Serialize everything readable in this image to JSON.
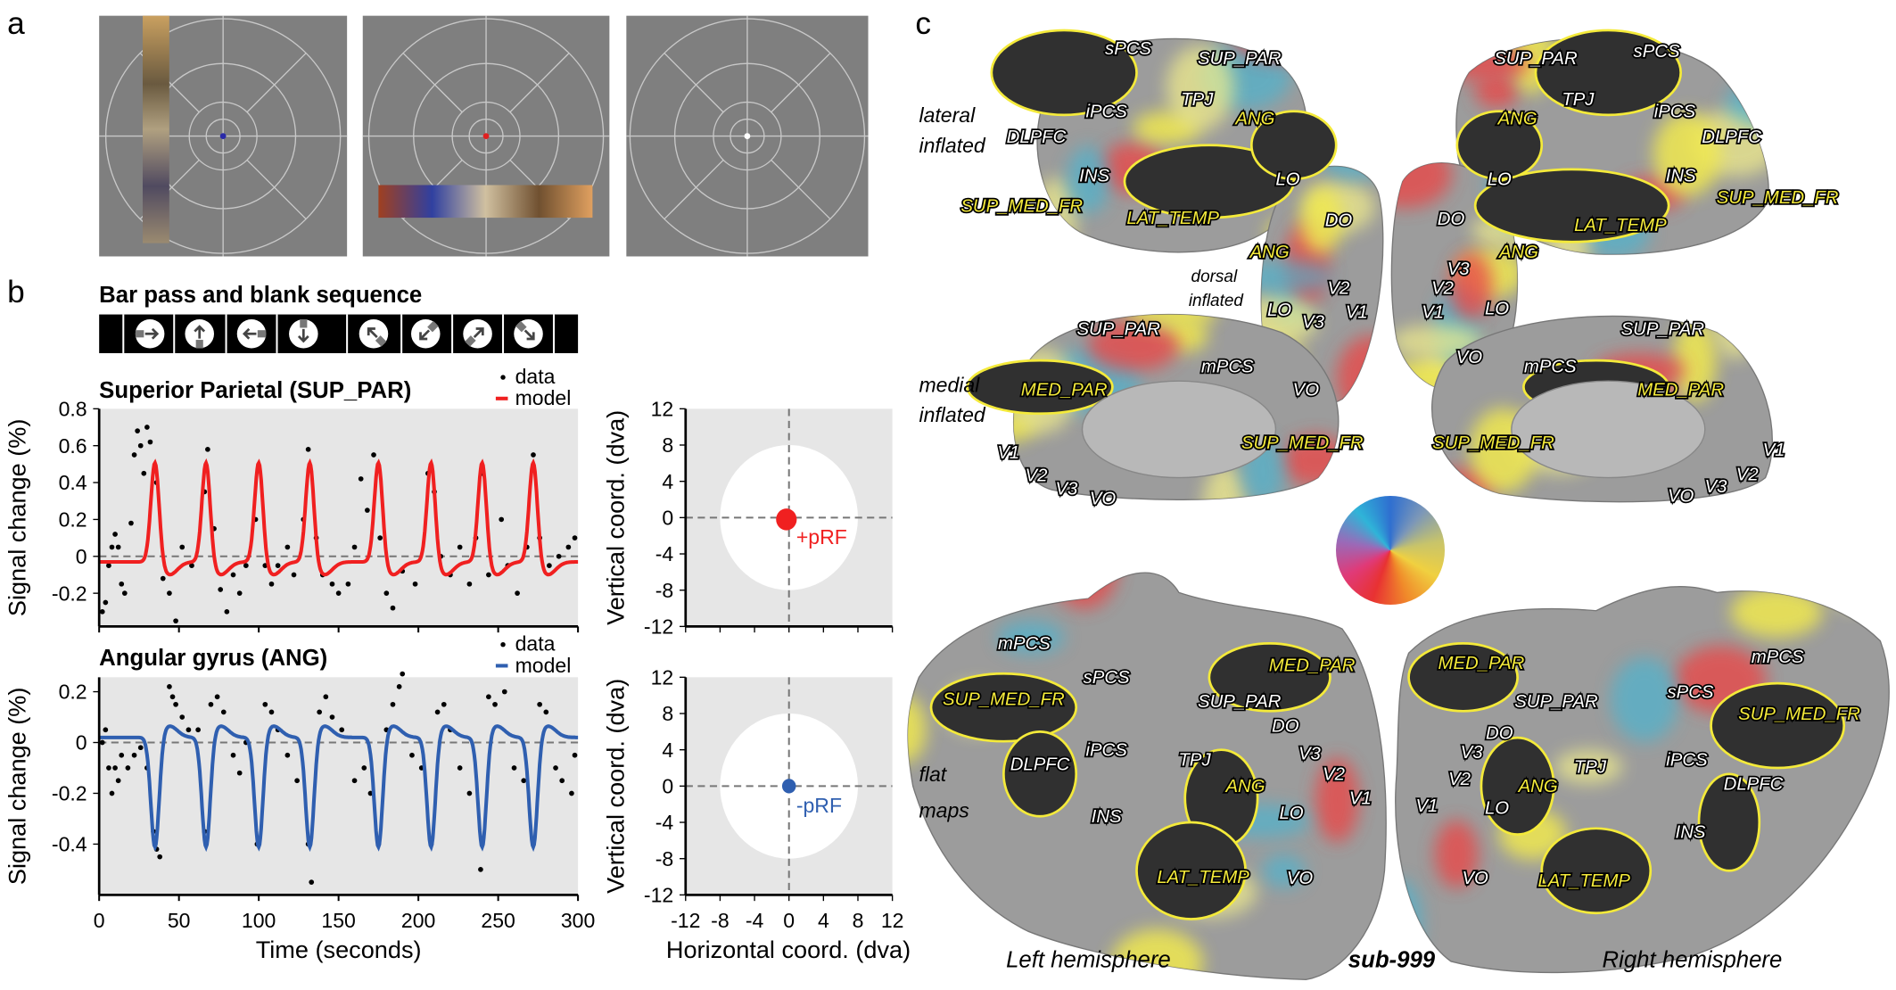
{
  "panel_a": {
    "letter": "a",
    "stimuli": [
      {
        "bar": "vertical-left",
        "fixation_color": "#2a2aa8"
      },
      {
        "bar": "horizontal-bottom",
        "fixation_color": "#e02020"
      },
      {
        "bar": "none",
        "fixation_color": "#ffffff"
      }
    ]
  },
  "panel_b": {
    "letter": "b",
    "sequence_title": "Bar pass and blank sequence",
    "legend": {
      "data": "data",
      "model": "model"
    }
  },
  "panel_c": {
    "letter": "c",
    "side_labels": [
      "lateral",
      "inflated",
      "medial",
      "inflated",
      "flat",
      "maps",
      "dorsal",
      "inflated"
    ],
    "bottom_labels": {
      "left": "Left hemisphere",
      "subject": "sub-999",
      "right": "Right hemisphere"
    },
    "roi_labels": [
      "sPCS",
      "SUP_PAR",
      "iPCS",
      "TPJ",
      "ANG",
      "DLPFC",
      "INS",
      "LO",
      "SUP_MED_FR",
      "LAT_TEMP",
      "SUP_PAR",
      "sPCS",
      "ANG",
      "TPJ",
      "iPCS",
      "DLPFC",
      "LO",
      "INS",
      "LAT_TEMP",
      "SUP_MED_FR",
      "DO",
      "ANG",
      "V3",
      "V2",
      "V1",
      "LO",
      "VO",
      "DO",
      "V3",
      "ANG",
      "V2",
      "V1",
      "LO",
      "VO",
      "SUP_PAR",
      "mPCS",
      "MED_PAR",
      "SUP_MED_FR",
      "V1",
      "V2",
      "V3",
      "VO",
      "SUP_PAR",
      "mPCS",
      "MED_PAR",
      "SUP_MED_FR",
      "V1",
      "V2",
      "V3",
      "VO",
      "mPCS",
      "sPCS",
      "MED_PAR",
      "SUP_MED_FR",
      "SUP_PAR",
      "DO",
      "iPCS",
      "DLPFC",
      "TPJ",
      "V3",
      "V2",
      "ANG",
      "V1",
      "LO",
      "INS",
      "LAT_TEMP",
      "VO",
      "MED_PAR",
      "mPCS",
      "SUP_PAR",
      "sPCS",
      "SUP_MED_FR",
      "DO",
      "V3",
      "iPCS",
      "DLPFC",
      "V2",
      "TPJ",
      "ANG",
      "V1",
      "LO",
      "INS",
      "LAT_TEMP",
      "VO"
    ]
  },
  "colors": {
    "red": "#f02020",
    "blue": "#2f5fb0",
    "plot_bg": "#e6e6e6",
    "stim_bg": "#7f7f7f"
  },
  "chart_data": [
    {
      "type": "scatter",
      "title": "Superior Parietal (SUP_PAR)",
      "xlabel": "Time (seconds)",
      "ylabel": "Signal change (%)",
      "xlim": [
        0,
        300
      ],
      "ylim": [
        -0.38,
        0.8
      ],
      "xticks": [
        "0",
        "50",
        "100",
        "150",
        "200",
        "250",
        "300"
      ],
      "yticks": [
        "0.8",
        "0.6",
        "0.4",
        "0.2",
        "0",
        "-0.2"
      ],
      "ytick_values": [
        0.8,
        0.6,
        0.4,
        0.2,
        0,
        -0.2
      ],
      "legend": [
        "data",
        "model"
      ],
      "model": {
        "color": "#f02020",
        "baseline": -0.03,
        "amplitude": 0.55,
        "undershoot": -0.07,
        "event_times": [
          35,
          67,
          100,
          132,
          175,
          208,
          240,
          272
        ]
      },
      "data": [
        [
          2,
          -0.3
        ],
        [
          4,
          -0.25
        ],
        [
          6,
          -0.05
        ],
        [
          8,
          0.05
        ],
        [
          10,
          0.12
        ],
        [
          12,
          0.05
        ],
        [
          14,
          -0.15
        ],
        [
          16,
          -0.2
        ],
        [
          20,
          0.18
        ],
        [
          22,
          0.55
        ],
        [
          24,
          0.68
        ],
        [
          26,
          0.6
        ],
        [
          28,
          0.45
        ],
        [
          30,
          0.7
        ],
        [
          32,
          0.62
        ],
        [
          36,
          0.4
        ],
        [
          40,
          -0.12
        ],
        [
          44,
          -0.2
        ],
        [
          48,
          -0.35
        ],
        [
          52,
          0.05
        ],
        [
          58,
          -0.05
        ],
        [
          66,
          0.35
        ],
        [
          68,
          0.58
        ],
        [
          72,
          0.15
        ],
        [
          76,
          -0.18
        ],
        [
          80,
          -0.3
        ],
        [
          84,
          -0.1
        ],
        [
          88,
          -0.2
        ],
        [
          92,
          -0.05
        ],
        [
          98,
          0.2
        ],
        [
          104,
          -0.05
        ],
        [
          108,
          -0.15
        ],
        [
          112,
          -0.05
        ],
        [
          118,
          0.05
        ],
        [
          122,
          -0.1
        ],
        [
          128,
          0.2
        ],
        [
          131,
          0.58
        ],
        [
          136,
          0.1
        ],
        [
          140,
          -0.1
        ],
        [
          146,
          -0.15
        ],
        [
          150,
          -0.2
        ],
        [
          156,
          -0.15
        ],
        [
          160,
          0.05
        ],
        [
          164,
          0.42
        ],
        [
          168,
          0.25
        ],
        [
          172,
          0.55
        ],
        [
          176,
          0.1
        ],
        [
          180,
          -0.2
        ],
        [
          184,
          -0.28
        ],
        [
          190,
          -0.08
        ],
        [
          198,
          -0.15
        ],
        [
          206,
          0.45
        ],
        [
          210,
          0.35
        ],
        [
          214,
          0.0
        ],
        [
          220,
          -0.1
        ],
        [
          226,
          0.05
        ],
        [
          232,
          -0.15
        ],
        [
          236,
          0.1
        ],
        [
          240,
          0.45
        ],
        [
          244,
          -0.1
        ],
        [
          252,
          0.2
        ],
        [
          256,
          -0.05
        ],
        [
          262,
          -0.2
        ],
        [
          268,
          0.05
        ],
        [
          272,
          0.55
        ],
        [
          276,
          0.1
        ],
        [
          282,
          -0.05
        ],
        [
          288,
          0.0
        ],
        [
          294,
          0.05
        ],
        [
          298,
          0.1
        ]
      ]
    },
    {
      "type": "scatter",
      "title": "Angular gyrus (ANG)",
      "xlabel": "Time (seconds)",
      "ylabel": "Signal change (%)",
      "xlim": [
        0,
        300
      ],
      "ylim": [
        -0.6,
        0.257
      ],
      "xticks": [
        "0",
        "50",
        "100",
        "150",
        "200",
        "250",
        "300"
      ],
      "yticks": [
        "0.2",
        "0",
        "-0.2",
        "-0.4"
      ],
      "ytick_values": [
        0.2,
        0,
        -0.2,
        -0.4
      ],
      "legend": [
        "data",
        "model"
      ],
      "model": {
        "color": "#2f5fb0",
        "baseline": 0.02,
        "amplitude": -0.44,
        "undershoot": 0.045,
        "event_times": [
          35,
          67,
          100,
          132,
          175,
          208,
          240,
          272
        ]
      },
      "data": [
        [
          2,
          0.0
        ],
        [
          4,
          0.05
        ],
        [
          6,
          -0.1
        ],
        [
          8,
          -0.2
        ],
        [
          10,
          -0.1
        ],
        [
          12,
          -0.15
        ],
        [
          14,
          -0.05
        ],
        [
          18,
          -0.1
        ],
        [
          22,
          -0.05
        ],
        [
          26,
          -0.02
        ],
        [
          30,
          -0.1
        ],
        [
          34,
          -0.35
        ],
        [
          36,
          -0.42
        ],
        [
          38,
          -0.45
        ],
        [
          44,
          0.22
        ],
        [
          46,
          0.18
        ],
        [
          48,
          0.15
        ],
        [
          52,
          0.1
        ],
        [
          56,
          0.05
        ],
        [
          62,
          0.05
        ],
        [
          66,
          -0.35
        ],
        [
          70,
          0.15
        ],
        [
          74,
          0.18
        ],
        [
          78,
          0.12
        ],
        [
          84,
          -0.05
        ],
        [
          88,
          -0.12
        ],
        [
          92,
          0.0
        ],
        [
          99,
          -0.4
        ],
        [
          104,
          0.15
        ],
        [
          108,
          0.12
        ],
        [
          112,
          0.05
        ],
        [
          118,
          -0.05
        ],
        [
          124,
          -0.15
        ],
        [
          131,
          -0.4
        ],
        [
          133,
          -0.55
        ],
        [
          138,
          0.12
        ],
        [
          142,
          0.18
        ],
        [
          146,
          0.1
        ],
        [
          152,
          0.05
        ],
        [
          160,
          -0.15
        ],
        [
          166,
          -0.1
        ],
        [
          170,
          -0.2
        ],
        [
          175,
          -0.4
        ],
        [
          180,
          0.05
        ],
        [
          184,
          0.15
        ],
        [
          188,
          0.22
        ],
        [
          190,
          0.27
        ],
        [
          196,
          -0.05
        ],
        [
          202,
          -0.1
        ],
        [
          208,
          -0.4
        ],
        [
          212,
          0.12
        ],
        [
          216,
          0.15
        ],
        [
          220,
          0.05
        ],
        [
          226,
          -0.1
        ],
        [
          232,
          -0.2
        ],
        [
          239,
          -0.5
        ],
        [
          244,
          0.18
        ],
        [
          248,
          0.15
        ],
        [
          254,
          0.2
        ],
        [
          260,
          -0.1
        ],
        [
          266,
          -0.15
        ],
        [
          272,
          -0.4
        ],
        [
          276,
          0.15
        ],
        [
          280,
          0.12
        ],
        [
          286,
          -0.1
        ],
        [
          290,
          -0.15
        ],
        [
          296,
          -0.2
        ],
        [
          298,
          -0.05
        ]
      ]
    },
    {
      "type": "scatter",
      "xlabel": "Horizontal coord. (dva)",
      "ylabel": "Vertical coord. (dva)",
      "xlim": [
        -12,
        12
      ],
      "ylim": [
        -12,
        12
      ],
      "ticks": [
        "-12",
        "-8",
        "-4",
        "0",
        "4",
        "8",
        "12"
      ],
      "tick_values": [
        -12,
        -8,
        -4,
        0,
        4,
        8,
        12
      ],
      "stimulus_radius": 8,
      "point": {
        "x": -0.3,
        "y": -0.2,
        "label": "+pRF",
        "color": "#f02020",
        "size": 1.2
      }
    },
    {
      "type": "scatter",
      "xlabel": "Horizontal coord. (dva)",
      "ylabel": "Vertical coord. (dva)",
      "xlim": [
        -12,
        12
      ],
      "ylim": [
        -12,
        12
      ],
      "ticks": [
        "-12",
        "-8",
        "-4",
        "0",
        "4",
        "8",
        "12"
      ],
      "tick_values": [
        -12,
        -8,
        -4,
        0,
        4,
        8,
        12
      ],
      "stimulus_radius": 8,
      "point": {
        "x": 0,
        "y": 0,
        "label": "-pRF",
        "color": "#2f5fb0",
        "size": 0.8
      }
    }
  ]
}
